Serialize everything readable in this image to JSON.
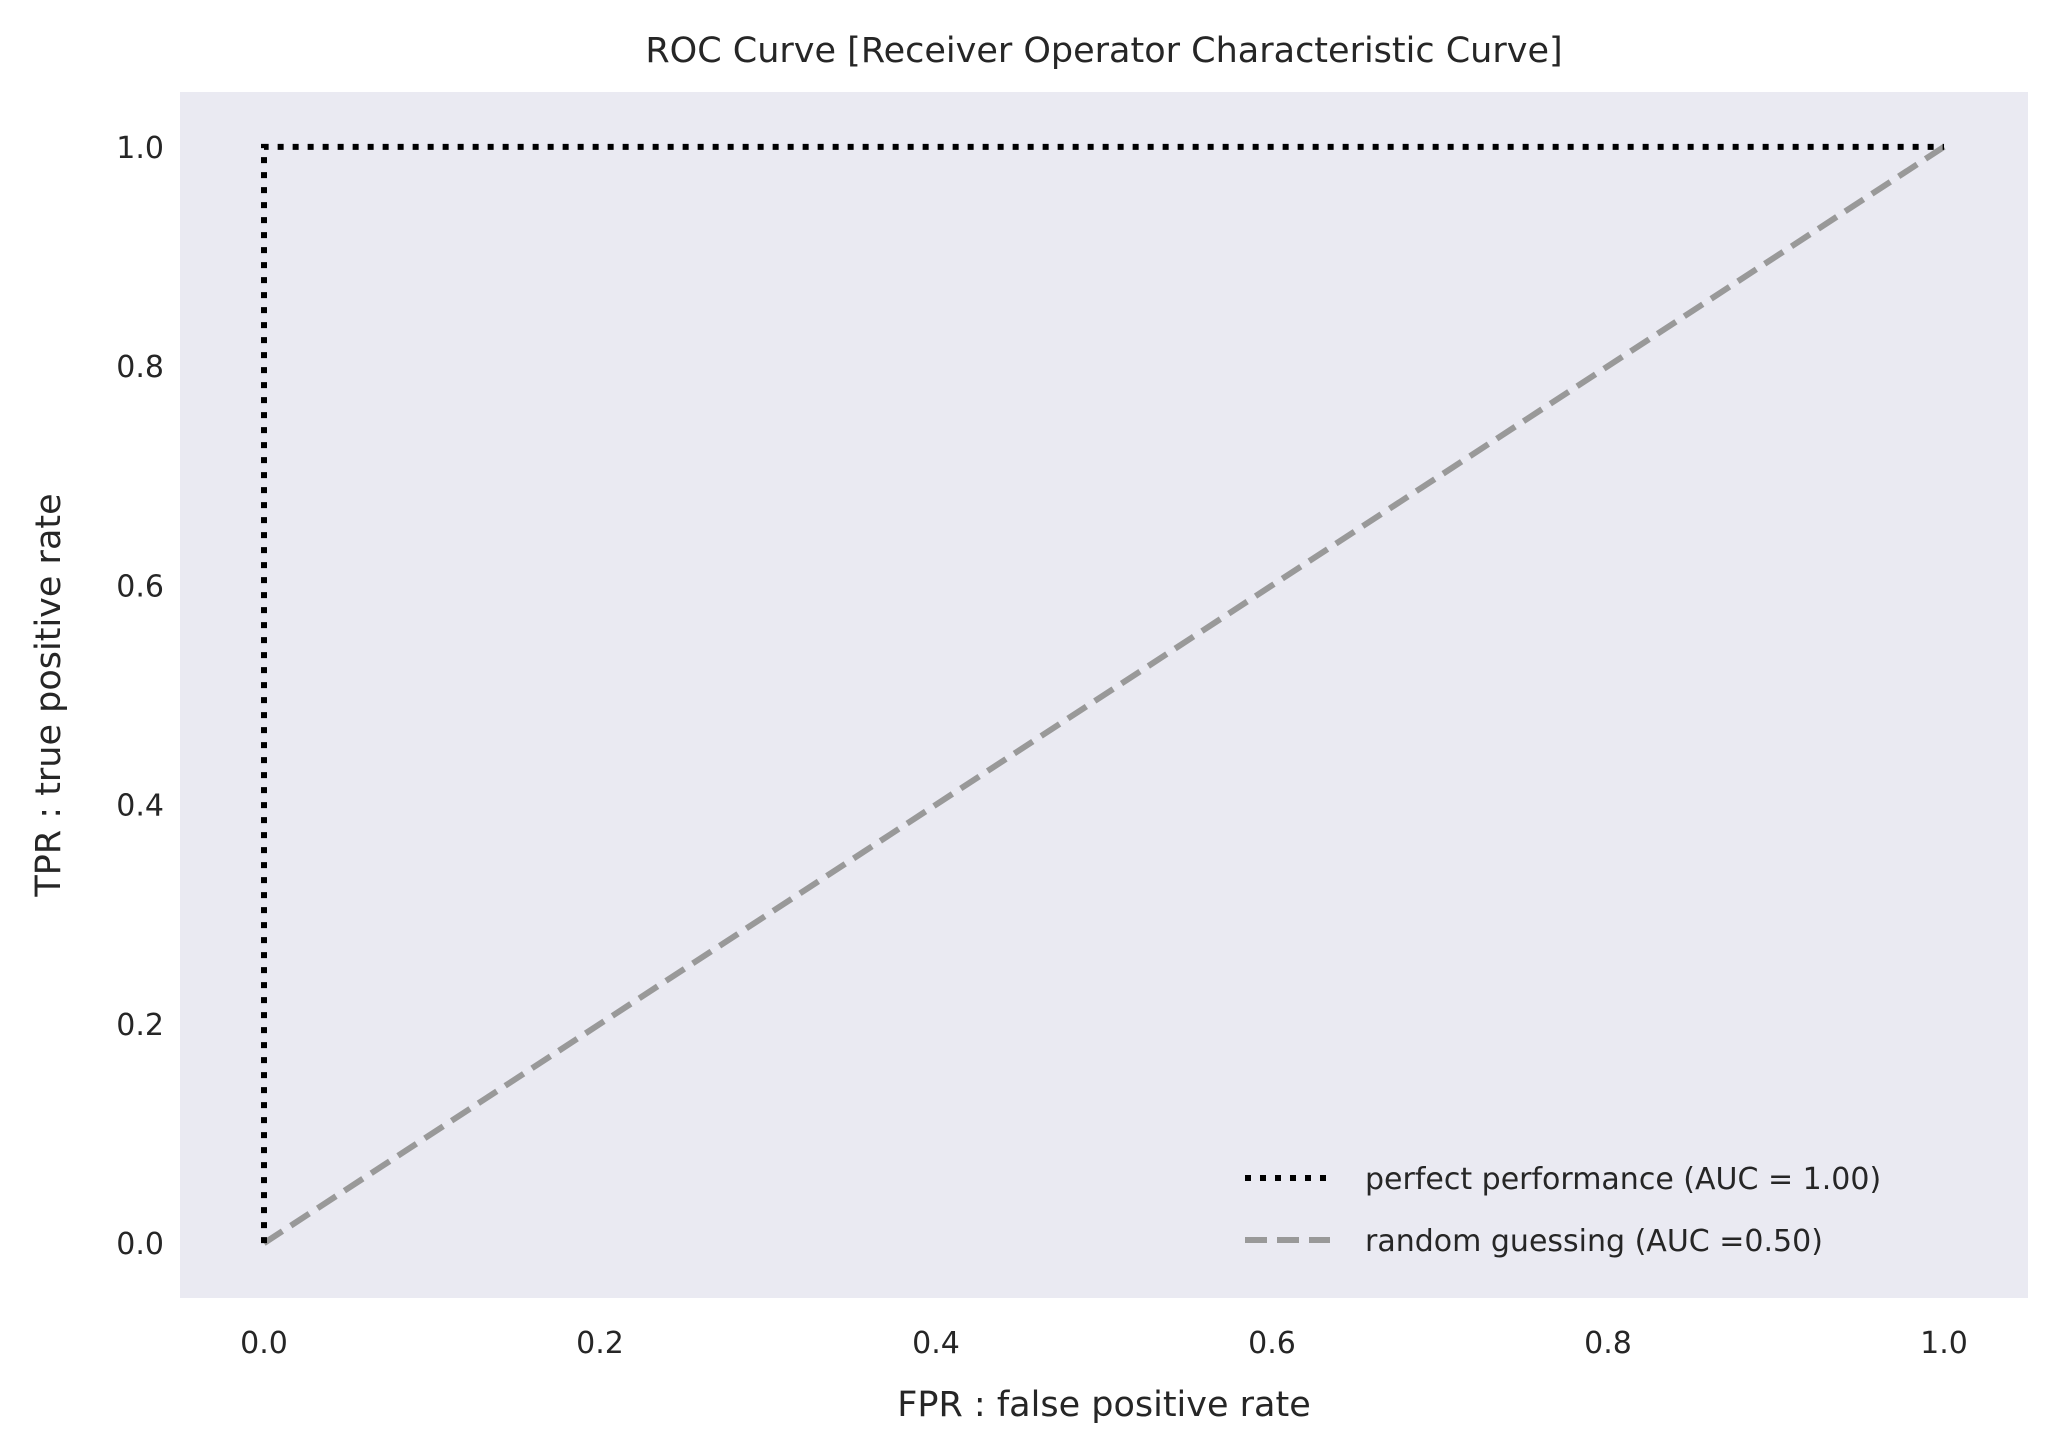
{
  "chart_data": {
    "type": "line",
    "title": "ROC Curve [Receiver Operator Characteristic Curve]",
    "xlabel": "FPR : false positive rate",
    "ylabel": "TPR : true positive rate",
    "xlim": [
      -0.05,
      1.05
    ],
    "ylim": [
      -0.05,
      1.05
    ],
    "xticks": [
      0.0,
      0.2,
      0.4,
      0.6,
      0.8,
      1.0
    ],
    "xtick_labels": [
      "0.0",
      "0.2",
      "0.4",
      "0.6",
      "0.8",
      "1.0"
    ],
    "yticks": [
      0.0,
      0.2,
      0.4,
      0.6,
      0.8,
      1.0
    ],
    "ytick_labels": [
      "0.0",
      "0.2",
      "0.4",
      "0.6",
      "0.8",
      "1.0"
    ],
    "grid": false,
    "plot_background": "#eaeaf2",
    "legend_position": "lower-right",
    "series": [
      {
        "name": "perfect performance (AUC = 1.00)",
        "x": [
          0,
          0,
          1
        ],
        "y": [
          0,
          1,
          1
        ],
        "color": "#000000",
        "style": "dotted"
      },
      {
        "name": "random guessing (AUC =0.50)",
        "x": [
          0,
          1
        ],
        "y": [
          0,
          1
        ],
        "color": "#999999",
        "style": "dashed"
      }
    ]
  }
}
